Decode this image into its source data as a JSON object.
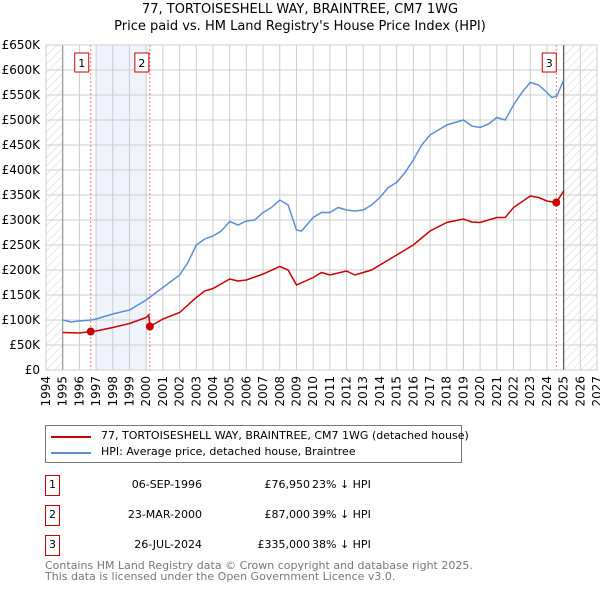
{
  "chart_data": {
    "type": "line",
    "title": "77, TORTOISESHELL WAY, BRAINTREE, CM7 1WG",
    "subtitle": "Price paid vs. HM Land Registry's House Price Index (HPI)",
    "xlim": [
      1994,
      2027
    ],
    "ylim": [
      0,
      650000
    ],
    "y_ticks": [
      "£0",
      "£50K",
      "£100K",
      "£150K",
      "£200K",
      "£250K",
      "£300K",
      "£350K",
      "£400K",
      "£450K",
      "£500K",
      "£550K",
      "£600K",
      "£650K"
    ],
    "x_ticks": [
      "1994",
      "1995",
      "1996",
      "1997",
      "1998",
      "1999",
      "2000",
      "2001",
      "2002",
      "2003",
      "2004",
      "2005",
      "2006",
      "2007",
      "2008",
      "2009",
      "2010",
      "2011",
      "2012",
      "2013",
      "2014",
      "2015",
      "2016",
      "2017",
      "2018",
      "2019",
      "2020",
      "2021",
      "2022",
      "2023",
      "2024",
      "2025",
      "2026",
      "2027"
    ],
    "grid": true,
    "shaded_range": [
      1997,
      2000
    ],
    "data_range": [
      1995,
      2025
    ],
    "series": [
      {
        "name": "77, TORTOISESHELL WAY, BRAINTREE, CM7 1WG (detached house)",
        "color": "#cc0000",
        "x": [
          1995,
          1996,
          1996.68,
          1997,
          1998,
          1999,
          2000,
          2000.15,
          2000.22,
          2001,
          2002,
          2003,
          2003.5,
          2004,
          2005,
          2005.5,
          2006,
          2007,
          2008,
          2008.5,
          2009,
          2010,
          2010.5,
          2011,
          2012,
          2012.5,
          2013,
          2013.5,
          2014,
          2015,
          2016,
          2017,
          2018,
          2019,
          2019.5,
          2020,
          2021,
          2021.5,
          2022,
          2023,
          2023.5,
          2024,
          2024.56,
          2025
        ],
        "y": [
          75000,
          74000,
          76950,
          78000,
          85000,
          93000,
          105000,
          110000,
          87000,
          102000,
          115000,
          145000,
          158000,
          163000,
          182000,
          178000,
          180000,
          192000,
          207000,
          200000,
          170000,
          185000,
          195000,
          190000,
          198000,
          190000,
          195000,
          200000,
          210000,
          230000,
          250000,
          278000,
          295000,
          302000,
          296000,
          295000,
          305000,
          305000,
          325000,
          348000,
          345000,
          338000,
          335000,
          358000
        ]
      },
      {
        "name": "HPI: Average price, detached house, Braintree",
        "color": "#5b8fd4",
        "x": [
          1995,
          1995.5,
          1996,
          1996.7,
          1997,
          1998,
          1999,
          2000,
          2000.2,
          2001,
          2002,
          2002.5,
          2003,
          2003.5,
          2004,
          2004.5,
          2005,
          2005.5,
          2006,
          2006.5,
          2007,
          2007.5,
          2008,
          2008.5,
          2009,
          2009.3,
          2010,
          2010.5,
          2011,
          2011.5,
          2012,
          2012.5,
          2013,
          2013.5,
          2014,
          2014.5,
          2015,
          2015.5,
          2016,
          2016.5,
          2017,
          2017.5,
          2018,
          2018.5,
          2019,
          2019.5,
          2020,
          2020.5,
          2021,
          2021.5,
          2022,
          2022.5,
          2023,
          2023.5,
          2024,
          2024.3,
          2024.6,
          2025
        ],
        "y": [
          100000,
          96000,
          98000,
          100000,
          102000,
          112000,
          120000,
          140000,
          145000,
          165000,
          190000,
          215000,
          250000,
          262000,
          268000,
          278000,
          297000,
          290000,
          298000,
          300000,
          315000,
          325000,
          340000,
          330000,
          280000,
          278000,
          305000,
          315000,
          315000,
          325000,
          320000,
          318000,
          320000,
          330000,
          345000,
          365000,
          375000,
          395000,
          420000,
          450000,
          470000,
          480000,
          490000,
          495000,
          500000,
          488000,
          485000,
          492000,
          505000,
          500000,
          530000,
          555000,
          575000,
          570000,
          555000,
          545000,
          548000,
          580000
        ]
      }
    ],
    "sales": [
      {
        "label": "1",
        "x": 1996.68,
        "y": 76950,
        "date": "06-SEP-1996",
        "price": "£76,950",
        "hpi": "23% ↓ HPI"
      },
      {
        "label": "2",
        "x": 2000.22,
        "y": 87000,
        "date": "23-MAR-2000",
        "price": "£87,000",
        "hpi": "39% ↓ HPI"
      },
      {
        "label": "3",
        "x": 2024.56,
        "y": 335000,
        "date": "26-JUL-2024",
        "price": "£335,000",
        "hpi": "38% ↓ HPI"
      }
    ]
  },
  "footer": {
    "line1": "Contains HM Land Registry data © Crown copyright and database right 2025.",
    "line2": "This data is licensed under the Open Government Licence v3.0."
  }
}
